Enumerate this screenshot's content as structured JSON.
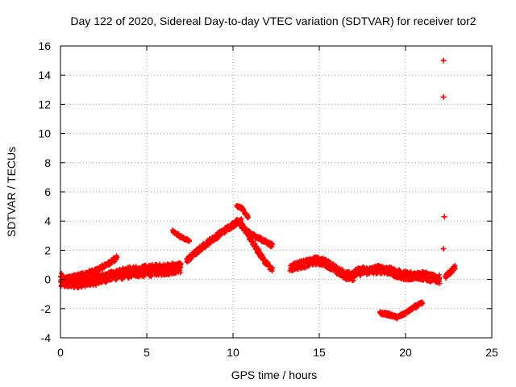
{
  "chart_data": {
    "type": "scatter",
    "title": "Day 122 of 2020, Sidereal Day-to-day VTEC variation (SDTVAR) for receiver tor2",
    "xlabel": "GPS time / hours",
    "ylabel": "SDTVAR / TECUs",
    "xlim": [
      0,
      25
    ],
    "ylim": [
      -4,
      16
    ],
    "xticks": [
      0,
      5,
      10,
      15,
      20,
      25
    ],
    "yticks": [
      -4,
      -2,
      0,
      2,
      4,
      6,
      8,
      10,
      12,
      14,
      16
    ],
    "grid": true,
    "series_color": "#ff0000",
    "segments": [
      {
        "name": "band-0",
        "x": [
          0.0,
          0.3,
          0.7,
          1.2,
          1.8,
          2.3,
          2.8,
          3.3,
          3.9,
          4.4,
          5.0,
          5.5,
          6.0,
          6.5,
          7.0
        ],
        "y": [
          0.1,
          -0.1,
          -0.3,
          -0.2,
          -0.1,
          0.0,
          0.2,
          0.3,
          0.4,
          0.5,
          0.5,
          0.6,
          0.6,
          0.7,
          0.8
        ],
        "spread": 0.35
      },
      {
        "name": "arc-1",
        "x": [
          0.2,
          0.8,
          1.5,
          2.2,
          2.8,
          3.3
        ],
        "y": [
          0.0,
          0.2,
          0.4,
          0.7,
          1.1,
          1.5
        ],
        "spread": 0.15
      },
      {
        "name": "band-2",
        "x": [
          0.0,
          1.0,
          2.0,
          3.0,
          4.0,
          5.0,
          6.0,
          7.0
        ],
        "y": [
          -0.3,
          -0.2,
          0.0,
          0.3,
          0.6,
          0.7,
          0.8,
          0.9
        ],
        "spread": 0.3
      },
      {
        "name": "slope-3",
        "x": [
          6.5,
          7.0,
          7.5
        ],
        "y": [
          3.3,
          2.9,
          2.6
        ],
        "spread": 0.1
      },
      {
        "name": "rise-4",
        "x": [
          7.3,
          7.8,
          8.5,
          9.2,
          9.8,
          10.3,
          10.5
        ],
        "y": [
          1.3,
          1.8,
          2.5,
          3.1,
          3.6,
          4.0,
          4.2
        ],
        "spread": 0.2
      },
      {
        "name": "fall-5",
        "x": [
          10.3,
          10.8,
          11.3,
          11.8,
          12.3
        ],
        "y": [
          4.0,
          3.2,
          2.2,
          1.3,
          0.6
        ],
        "spread": 0.2
      },
      {
        "name": "peak-6",
        "x": [
          10.2,
          10.5,
          10.9
        ],
        "y": [
          5.0,
          4.9,
          4.2
        ],
        "spread": 0.1
      },
      {
        "name": "high-7",
        "x": [
          10.8,
          11.2,
          11.7,
          12.3
        ],
        "y": [
          3.3,
          3.0,
          2.7,
          2.3
        ],
        "spread": 0.15
      },
      {
        "name": "band-8",
        "x": [
          13.3,
          13.8,
          14.3,
          14.8,
          15.2,
          15.6,
          16.0,
          16.5,
          17.0
        ],
        "y": [
          0.8,
          1.0,
          1.1,
          1.3,
          1.2,
          1.0,
          0.6,
          0.3,
          0.2
        ],
        "spread": 0.3
      },
      {
        "name": "band-9",
        "x": [
          16.5,
          17.0,
          17.5,
          18.0,
          18.5,
          19.0,
          19.5,
          20.0,
          20.5,
          21.0,
          21.5,
          22.0
        ],
        "y": [
          0.2,
          0.4,
          0.6,
          0.6,
          0.7,
          0.6,
          0.4,
          0.3,
          0.3,
          0.2,
          0.1,
          0.0
        ],
        "spread": 0.3
      },
      {
        "name": "arc-10",
        "x": [
          18.3,
          19.0,
          19.5,
          20.0,
          20.5,
          21.0,
          21.5,
          22.0
        ],
        "y": [
          0.8,
          0.6,
          0.3,
          0.1,
          0.2,
          0.4,
          0.2,
          -0.1
        ],
        "spread": 0.2
      },
      {
        "name": "neg-11",
        "x": [
          18.5,
          19.0,
          19.5,
          20.0,
          20.5,
          21.0
        ],
        "y": [
          -2.3,
          -2.4,
          -2.6,
          -2.3,
          -1.9,
          -1.6
        ],
        "spread": 0.12
      },
      {
        "name": "tail-12",
        "x": [
          22.3,
          22.6,
          22.9
        ],
        "y": [
          0.2,
          0.5,
          0.9
        ],
        "spread": 0.15
      }
    ],
    "outliers": {
      "x": [
        22.2,
        22.2,
        22.25,
        22.2
      ],
      "y": [
        15.0,
        12.5,
        4.3,
        2.1
      ]
    }
  }
}
